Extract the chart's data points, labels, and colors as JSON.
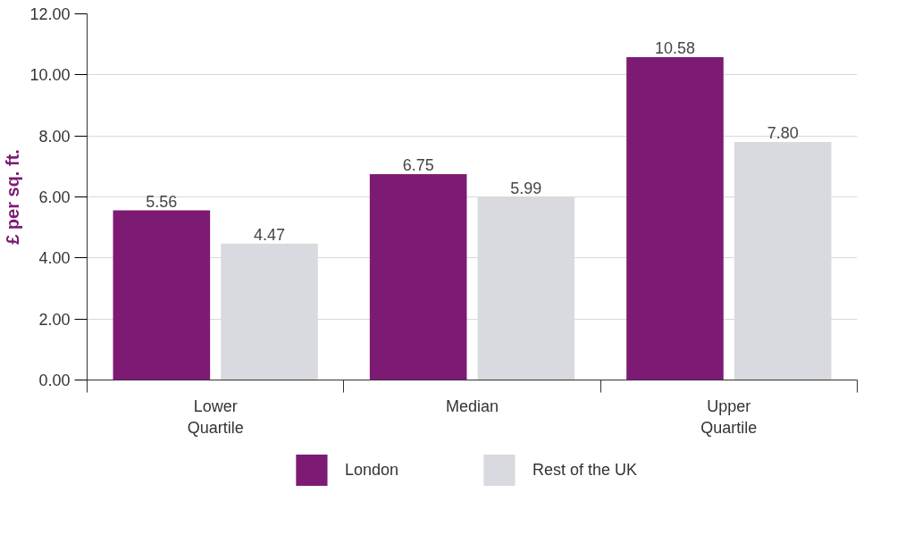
{
  "chart_data": {
    "type": "bar",
    "ylabel": "£ per sq. ft.",
    "categories": [
      "Lower Quartile",
      "Median",
      "Upper Quartile"
    ],
    "series": [
      {
        "name": "London",
        "color": "#7d1b74",
        "values": [
          5.56,
          6.75,
          10.58
        ],
        "value_labels": [
          "5.56",
          "6.75",
          "10.58"
        ]
      },
      {
        "name": "Rest of the UK",
        "color": "#d9dadf",
        "values": [
          4.47,
          5.99,
          7.8
        ],
        "value_labels": [
          "4.47",
          "5.99",
          "7.80"
        ]
      }
    ],
    "ylim": [
      0,
      12
    ],
    "yticks": [
      {
        "value": 0,
        "label": "0.00"
      },
      {
        "value": 2,
        "label": "2.00"
      },
      {
        "value": 4,
        "label": "4.00"
      },
      {
        "value": 6,
        "label": "6.00"
      },
      {
        "value": 8,
        "label": "8.00"
      },
      {
        "value": 10,
        "label": "10.00"
      },
      {
        "value": 12,
        "label": "12.00"
      }
    ],
    "grid": "y",
    "legend": "bottom"
  }
}
